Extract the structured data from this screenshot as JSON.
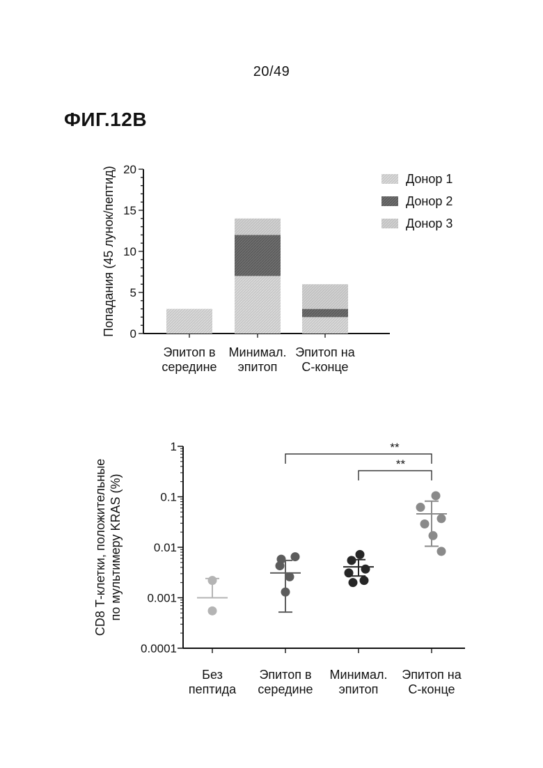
{
  "page_number": "20/49",
  "figure_label": "ФИГ.12B",
  "colors": {
    "donor1": "#c8c8c8",
    "donor2": "#6e6e6e",
    "donor3": "#c2c2c2",
    "no_peptide": "#b4b4b4",
    "mid_epitope": "#5c5c5c",
    "minimal_epitope": "#262626",
    "c_term_epitope": "#8a8a8a",
    "axis": "#111111"
  },
  "chart_data": [
    {
      "type": "bar",
      "stacked": true,
      "ylabel": "Попадания (45 лунок/пептид)",
      "xlabel": "",
      "ylim": [
        0,
        20
      ],
      "yticks": [
        0,
        5,
        10,
        15,
        20
      ],
      "categories": [
        [
          "Эпитоп в",
          "середине"
        ],
        [
          "Минимал.",
          "эпитоп"
        ],
        [
          "Эпитоп на",
          "С-конце"
        ]
      ],
      "series": [
        {
          "name": "Донор 1",
          "values": [
            3,
            7,
            2
          ]
        },
        {
          "name": "Донор 2",
          "values": [
            0,
            5,
            1
          ]
        },
        {
          "name": "Донор 3",
          "values": [
            0,
            2,
            3
          ]
        }
      ],
      "legend_position": "top-right"
    },
    {
      "type": "scatter",
      "log_scale": true,
      "ylabel": [
        "CD8 Т-клетки, положительные",
        "по мультимеру KRAS (%)"
      ],
      "xlabel": "",
      "ylim": [
        0.0001,
        1
      ],
      "yticks": [
        "0.0001",
        "0.001",
        "0.01",
        "0.1",
        "1"
      ],
      "categories": [
        [
          "Без",
          "пептида"
        ],
        [
          "Эпитоп в",
          "середине"
        ],
        [
          "Минимал.",
          "эпитоп"
        ],
        [
          "Эпитоп на",
          "С-конце"
        ]
      ],
      "groups": [
        {
          "points": [
            0.0022,
            0.00055
          ],
          "mean": 0.001,
          "err_low": 0.001,
          "err_high": 0.0024
        },
        {
          "points": [
            0.0058,
            0.0065,
            0.0026,
            0.0043,
            0.0013
          ],
          "mean": 0.0031,
          "err_low": 0.00052,
          "err_high": 0.0055
        },
        {
          "points": [
            0.0072,
            0.0055,
            0.0037,
            0.0031,
            0.0022,
            0.002
          ],
          "mean": 0.0041,
          "err_low": 0.0027,
          "err_high": 0.0057
        },
        {
          "points": [
            0.105,
            0.062,
            0.037,
            0.029,
            0.017,
            0.0083
          ],
          "mean": 0.046,
          "err_low": 0.0105,
          "err_high": 0.082
        }
      ],
      "annotations": [
        {
          "from_group": 1,
          "to_group": 3,
          "text": "**"
        },
        {
          "from_group": 2,
          "to_group": 3,
          "text": "**"
        }
      ]
    }
  ]
}
